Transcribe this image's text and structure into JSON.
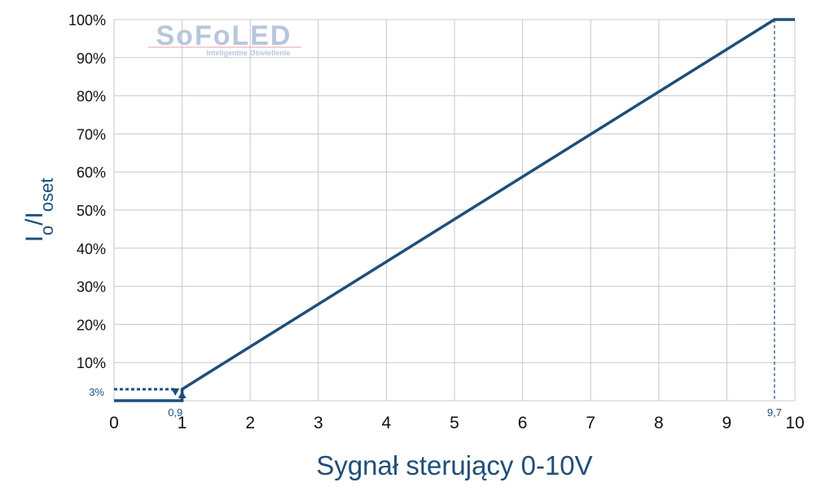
{
  "logo": {
    "name": "SoFoLED",
    "tagline": "Inteligentne Oświetlenie"
  },
  "colors": {
    "series": "#1f4e79",
    "grid": "#c8c8c8",
    "tick_text": "#111111",
    "logo": "#b7c6dc"
  },
  "chart_data": {
    "type": "line",
    "xlabel": "Sygnał sterujący 0-10V",
    "ylabel": {
      "base": "I",
      "sub1": "o",
      "sep": "/I",
      "sub2": "oset"
    },
    "xlim": [
      0,
      10
    ],
    "ylim": [
      0,
      100
    ],
    "x_ticks": [
      "0",
      "1",
      "2",
      "3",
      "4",
      "5",
      "6",
      "7",
      "8",
      "9",
      "10"
    ],
    "y_ticks": [
      "10%",
      "20%",
      "30%",
      "40%",
      "50%",
      "60%",
      "70%",
      "80%",
      "90%",
      "100%"
    ],
    "grid": true,
    "series": [
      {
        "points": [
          {
            "x": 0,
            "y": 0
          },
          {
            "x": 1,
            "y": 0
          },
          {
            "x": 1,
            "y": 3
          },
          {
            "x": 9.7,
            "y": 100
          },
          {
            "x": 10,
            "y": 100
          }
        ]
      }
    ],
    "annotations": {
      "low_level": {
        "label": "3%",
        "y": 3,
        "x_end": 0.9
      },
      "off_threshold": {
        "label": "0,9",
        "x": 0.9
      },
      "on_threshold": {
        "x": 1
      },
      "full_threshold": {
        "label": "9,7",
        "x": 9.7
      }
    }
  }
}
